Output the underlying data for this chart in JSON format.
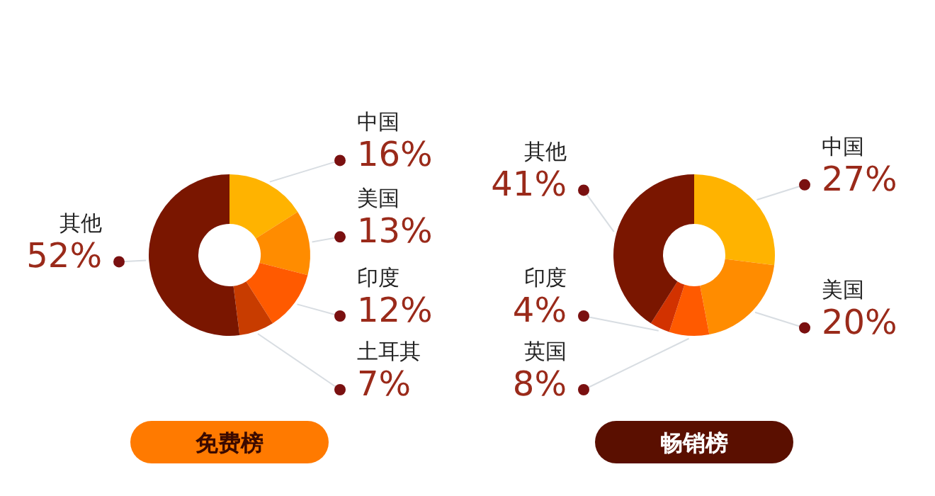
{
  "chart_data": [
    {
      "type": "donut",
      "title": "免费榜",
      "categories": [
        "中国",
        "美国",
        "印度",
        "土耳其",
        "其他"
      ],
      "values": [
        16,
        13,
        12,
        7,
        52
      ],
      "value_labels": [
        "16%",
        "13%",
        "12%",
        "7%",
        "52%"
      ],
      "colors": [
        "#ffb300",
        "#ff8c00",
        "#ff5a00",
        "#c83c00",
        "#7a1600"
      ]
    },
    {
      "type": "donut",
      "title": "畅销榜",
      "categories": [
        "中国",
        "美国",
        "英国",
        "印度",
        "其他"
      ],
      "values": [
        27,
        20,
        8,
        4,
        41
      ],
      "value_labels": [
        "27%",
        "20%",
        "8%",
        "4%",
        "41%"
      ],
      "colors": [
        "#ffb300",
        "#ff8c00",
        "#ff5a00",
        "#d23200",
        "#7a1600"
      ]
    }
  ]
}
